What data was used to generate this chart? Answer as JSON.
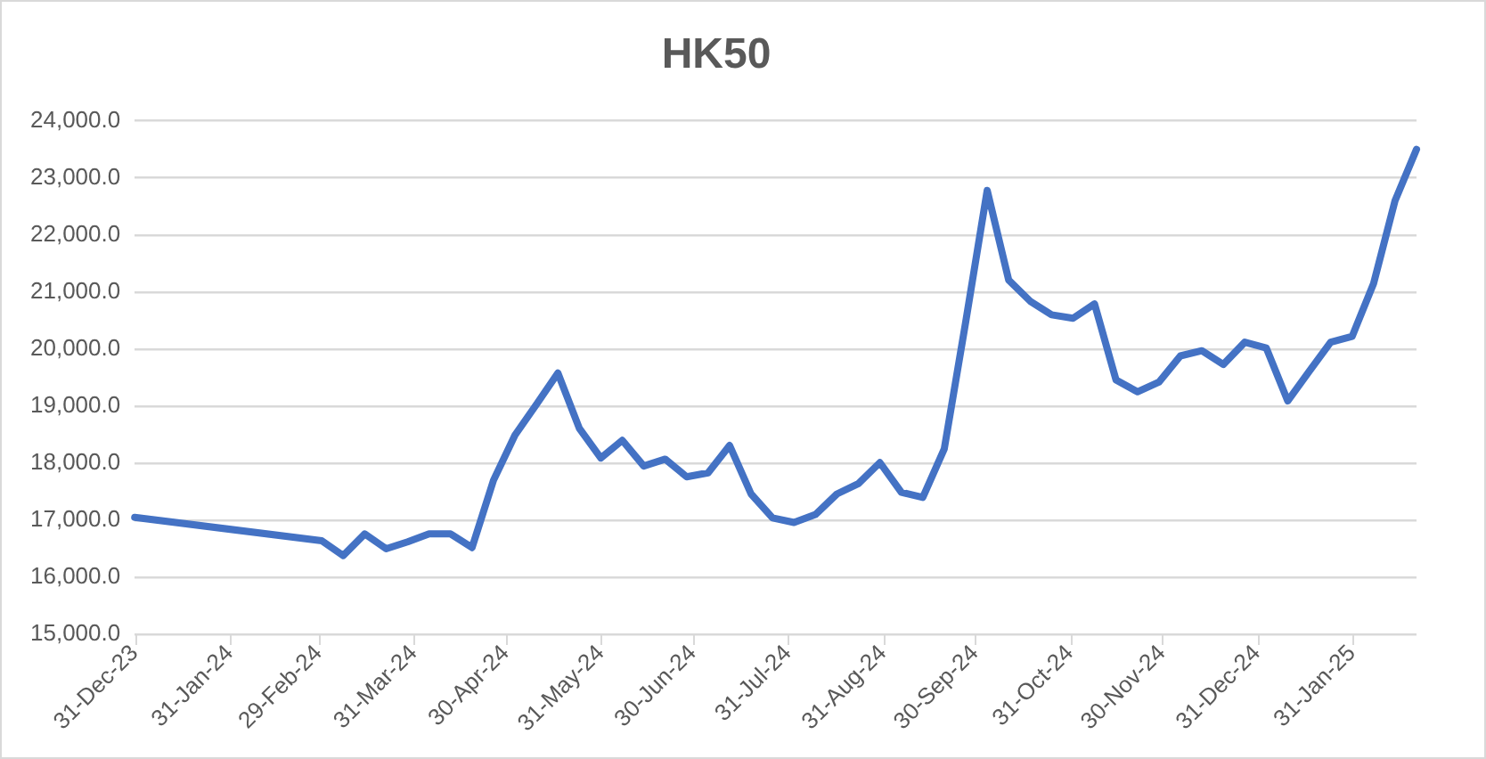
{
  "chart_data": {
    "type": "line",
    "title": "HK50",
    "x": [
      "2023-12-31",
      "2024-03-01",
      "2024-03-08",
      "2024-03-15",
      "2024-03-22",
      "2024-03-29",
      "2024-04-05",
      "2024-04-12",
      "2024-04-19",
      "2024-04-26",
      "2024-05-03",
      "2024-05-10",
      "2024-05-17",
      "2024-05-24",
      "2024-05-31",
      "2024-06-07",
      "2024-06-14",
      "2024-06-21",
      "2024-06-28",
      "2024-07-05",
      "2024-07-12",
      "2024-07-19",
      "2024-07-26",
      "2024-08-02",
      "2024-08-09",
      "2024-08-16",
      "2024-08-23",
      "2024-08-30",
      "2024-09-06",
      "2024-09-13",
      "2024-09-20",
      "2024-09-27",
      "2024-10-04",
      "2024-10-11",
      "2024-10-18",
      "2024-10-25",
      "2024-11-01",
      "2024-11-08",
      "2024-11-15",
      "2024-11-22",
      "2024-11-29",
      "2024-12-06",
      "2024-12-13",
      "2024-12-20",
      "2024-12-27",
      "2025-01-03",
      "2025-01-10",
      "2025-01-17",
      "2025-01-24",
      "2025-01-31",
      "2025-02-07",
      "2025-02-14",
      "2025-02-21"
    ],
    "series": [
      {
        "color": "#4472c4",
        "values": [
          17050,
          16640,
          16380,
          16760,
          16500,
          16620,
          16760,
          16760,
          16520,
          17700,
          18490,
          19030,
          19580,
          18610,
          18090,
          18400,
          17950,
          18070,
          17760,
          17830,
          18310,
          17460,
          17040,
          16960,
          17100,
          17460,
          17640,
          18010,
          17490,
          17400,
          18250,
          20480,
          22780,
          21210,
          20840,
          20600,
          20540,
          20790,
          19460,
          19250,
          19420,
          19880,
          19970,
          19730,
          20120,
          20020,
          19090,
          19610,
          20120,
          20220,
          21150,
          22600,
          23500
        ]
      }
    ],
    "xlim": [
      "2023-12-31",
      "2025-02-21"
    ],
    "xticks": [
      {
        "value": "2023-12-31",
        "label": "31-Dec-23"
      },
      {
        "value": "2024-01-31",
        "label": "31-Jan-24"
      },
      {
        "value": "2024-02-29",
        "label": "29-Feb-24"
      },
      {
        "value": "2024-03-31",
        "label": "31-Mar-24"
      },
      {
        "value": "2024-04-30",
        "label": "30-Apr-24"
      },
      {
        "value": "2024-05-31",
        "label": "31-May-24"
      },
      {
        "value": "2024-06-30",
        "label": "30-Jun-24"
      },
      {
        "value": "2024-07-31",
        "label": "31-Jul-24"
      },
      {
        "value": "2024-08-31",
        "label": "31-Aug-24"
      },
      {
        "value": "2024-09-30",
        "label": "30-Sep-24"
      },
      {
        "value": "2024-10-31",
        "label": "31-Oct-24"
      },
      {
        "value": "2024-11-30",
        "label": "30-Nov-24"
      },
      {
        "value": "2024-12-31",
        "label": "31-Dec-24"
      },
      {
        "value": "2025-01-31",
        "label": "31-Jan-25"
      }
    ],
    "ylim": [
      15000,
      24000
    ],
    "yticks": [
      {
        "value": 15000,
        "label": "15,000.0"
      },
      {
        "value": 16000,
        "label": "16,000.0"
      },
      {
        "value": 17000,
        "label": "17,000.0"
      },
      {
        "value": 18000,
        "label": "18,000.0"
      },
      {
        "value": 19000,
        "label": "19,000.0"
      },
      {
        "value": 20000,
        "label": "20,000.0"
      },
      {
        "value": 21000,
        "label": "21,000.0"
      },
      {
        "value": 22000,
        "label": "22,000.0"
      },
      {
        "value": 23000,
        "label": "23,000.0"
      },
      {
        "value": 24000,
        "label": "24,000.0"
      }
    ],
    "grid": "y",
    "legend": false,
    "marker": "none",
    "line_style": "solid"
  }
}
